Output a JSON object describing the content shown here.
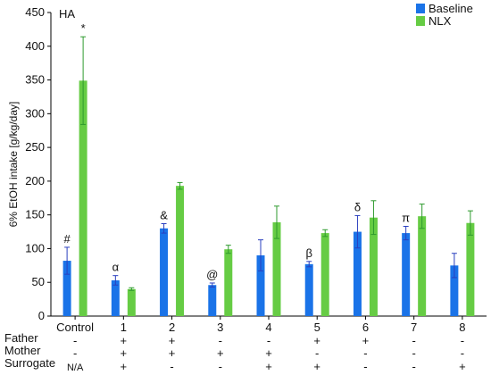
{
  "chart_data": {
    "type": "bar",
    "title": "HA",
    "ylabel": "6% EtOH intake [g/kg/day]",
    "xlabel": "",
    "ylim": [
      0,
      450
    ],
    "yticks": [
      0,
      50,
      100,
      150,
      200,
      250,
      300,
      350,
      400,
      450
    ],
    "categories": [
      "Control",
      "1",
      "2",
      "3",
      "4",
      "5",
      "6",
      "7",
      "8"
    ],
    "legend_position": "top-right",
    "series": [
      {
        "name": "Baseline",
        "color": "#1a73e8",
        "values": [
          82,
          53,
          130,
          46,
          90,
          77,
          125,
          123,
          75
        ],
        "errors": [
          20,
          7,
          7,
          3,
          23,
          4,
          24,
          10,
          18
        ]
      },
      {
        "name": "NLX",
        "color": "#66cc44",
        "values": [
          349,
          40,
          193,
          99,
          139,
          123,
          146,
          148,
          138
        ],
        "errors": [
          65,
          2,
          5,
          6,
          24,
          5,
          25,
          18,
          18
        ]
      }
    ],
    "annotations": [
      {
        "category": 0,
        "series": 0,
        "text": "#"
      },
      {
        "category": 0,
        "series": 1,
        "text": "*"
      },
      {
        "category": 1,
        "series": 0,
        "text": "α"
      },
      {
        "category": 2,
        "series": 0,
        "text": "&"
      },
      {
        "category": 3,
        "series": 0,
        "text": "@"
      },
      {
        "category": 5,
        "series": 0,
        "text": "β"
      },
      {
        "category": 6,
        "series": 0,
        "text": "δ"
      },
      {
        "category": 7,
        "series": 0,
        "text": "π"
      }
    ],
    "factor_table": {
      "rows": [
        {
          "label": "Father",
          "values": [
            "-",
            "+",
            "+",
            "-",
            "-",
            "+",
            "+",
            "-",
            "-"
          ]
        },
        {
          "label": "Mother",
          "values": [
            "-",
            "+",
            "+",
            "+",
            "+",
            "-",
            "-",
            "-",
            "-"
          ]
        },
        {
          "label": "Surrogate",
          "values": [
            "N/A",
            "+",
            "-",
            "-",
            "+",
            "+",
            "-",
            "-",
            "+"
          ]
        }
      ]
    }
  }
}
